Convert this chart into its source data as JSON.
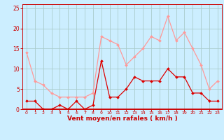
{
  "x": [
    0,
    1,
    2,
    3,
    4,
    5,
    6,
    7,
    8,
    9,
    10,
    11,
    12,
    13,
    14,
    15,
    16,
    17,
    18,
    19,
    20,
    21,
    22,
    23
  ],
  "wind_avg": [
    2,
    2,
    0,
    0,
    1,
    0,
    2,
    0,
    1,
    12,
    3,
    3,
    5,
    8,
    7,
    7,
    7,
    10,
    8,
    8,
    4,
    4,
    2,
    2
  ],
  "wind_gust": [
    14,
    7,
    6,
    4,
    3,
    3,
    3,
    3,
    4,
    18,
    17,
    16,
    11,
    13,
    15,
    18,
    17,
    23,
    17,
    19,
    15,
    11,
    5,
    7
  ],
  "avg_color": "#dd0000",
  "gust_color": "#ff9999",
  "bg_color": "#cceeff",
  "grid_color": "#aacccc",
  "xlabel": "Vent moyen/en rafales ( km/h )",
  "xlabel_color": "#cc0000",
  "yticks": [
    0,
    5,
    10,
    15,
    20,
    25
  ],
  "ylim": [
    0,
    26
  ],
  "xlim": [
    -0.5,
    23.5
  ],
  "tick_color": "#cc0000",
  "spine_color": "#cc0000",
  "hline_color": "#cc0000"
}
